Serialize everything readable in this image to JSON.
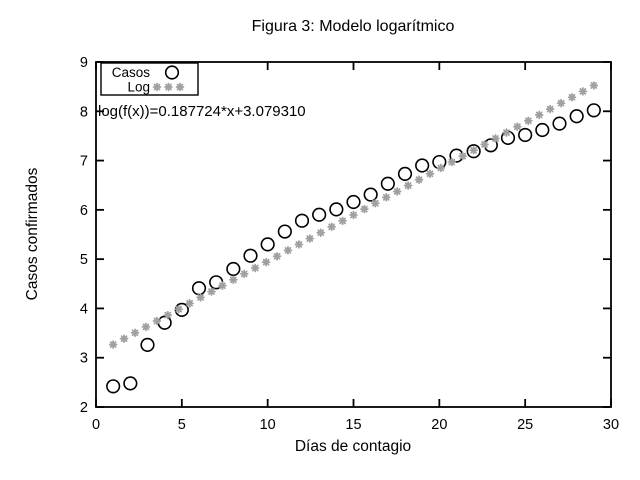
{
  "chart_data": {
    "type": "scatter",
    "title": "Figura 3: Modelo logarítmico",
    "xlabel": "Días de contagio",
    "ylabel": "Casos confirmados",
    "xlim": [
      0,
      30
    ],
    "ylim": [
      2,
      9
    ],
    "xticks": [
      0,
      5,
      10,
      15,
      20,
      25,
      30
    ],
    "yticks": [
      2,
      3,
      4,
      5,
      6,
      7,
      8,
      9
    ],
    "grid": false,
    "annotation": "log(f(x))=0.187724*x+3.079310",
    "legend": {
      "position": "top-left",
      "entries": [
        {
          "label": "Casos",
          "marker": "open-circle",
          "color": "#000000"
        },
        {
          "label": "Log",
          "marker": "star",
          "color": "#a0a0a0"
        }
      ]
    },
    "series": [
      {
        "name": "Casos",
        "marker": "open-circle",
        "color": "#000000",
        "x": [
          1,
          2,
          3,
          4,
          5,
          6,
          7,
          8,
          9,
          10,
          11,
          12,
          13,
          14,
          15,
          16,
          17,
          18,
          19,
          20,
          21,
          22,
          23,
          24,
          25,
          26,
          27,
          28,
          29
        ],
        "y": [
          2.42,
          2.48,
          3.26,
          3.71,
          3.97,
          4.41,
          4.53,
          4.8,
          5.07,
          5.3,
          5.56,
          5.78,
          5.9,
          6.01,
          6.16,
          6.31,
          6.53,
          6.73,
          6.9,
          6.97,
          7.1,
          7.19,
          7.31,
          7.46,
          7.52,
          7.62,
          7.75,
          7.9,
          8.02
        ]
      },
      {
        "name": "Log",
        "marker": "star",
        "color": "#a0a0a0",
        "fit": {
          "slope": 0.187724,
          "intercept": 3.07931,
          "x_start": 1,
          "x_end": 29,
          "n_points": 45
        }
      }
    ]
  }
}
